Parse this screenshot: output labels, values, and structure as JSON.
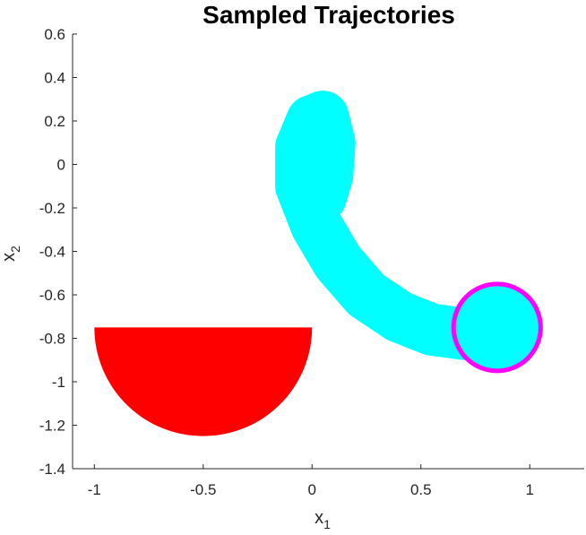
{
  "chart_data": {
    "type": "line",
    "title": "Sampled Trajectories",
    "xlabel": "x_1",
    "ylabel": "x_2",
    "xlim": [
      -1.1,
      1.25
    ],
    "ylim": [
      -1.4,
      0.6
    ],
    "grid": false,
    "xticks": [
      -1,
      -0.5,
      0,
      0.5,
      1
    ],
    "xtick_labels": [
      "-1",
      "-0.5",
      "0",
      "0.5",
      "1"
    ],
    "yticks": [
      0.6,
      0.4,
      0.2,
      0,
      -0.2,
      -0.4,
      -0.6,
      -0.8,
      -1,
      -1.2,
      -1.4
    ],
    "ytick_labels": [
      "0.6",
      "0.4",
      "0.2",
      "0",
      "-0.2",
      "-0.4",
      "-0.6",
      "-0.8",
      "-1",
      "-1.2",
      "-1.4"
    ],
    "trajectories": {
      "color": "#00FFFF",
      "description_count": 40,
      "mean_path": [
        [
          0.85,
          -0.75
        ],
        [
          0.7,
          -0.78
        ],
        [
          0.55,
          -0.76
        ],
        [
          0.4,
          -0.7
        ],
        [
          0.25,
          -0.6
        ],
        [
          0.12,
          -0.45
        ],
        [
          0.02,
          -0.28
        ],
        [
          -0.05,
          -0.1
        ],
        [
          -0.05,
          0.08
        ],
        [
          0.0,
          0.2
        ],
        [
          0.05,
          0.22
        ],
        [
          0.08,
          0.1
        ],
        [
          0.07,
          -0.05
        ],
        [
          0.04,
          -0.15
        ]
      ]
    },
    "obstacle": {
      "shape": "lower-half-disk",
      "center": [
        -0.5,
        -0.75
      ],
      "radius": 0.5,
      "color": "#FF0000"
    },
    "goal": {
      "shape": "circle",
      "center": [
        0.85,
        -0.75
      ],
      "radius": 0.2,
      "color": "#FF00FF"
    }
  }
}
